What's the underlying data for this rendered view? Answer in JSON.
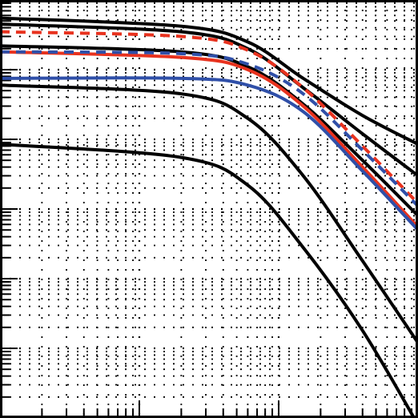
{
  "chart_data": {
    "type": "line",
    "title": "",
    "xlabel": "",
    "ylabel": "",
    "xscale": "log",
    "yscale": "log",
    "xlim": [
      1,
      1000
    ],
    "ylim": [
      1e-06,
      1
    ],
    "grid": true,
    "grid_style": "dotted",
    "legend": "none",
    "colors": {
      "black": "#000000",
      "red": "#e8321e",
      "blue": "#2f4fa8"
    },
    "series": [
      {
        "color": "black",
        "style": "solid",
        "x": [
          1,
          20,
          60,
          150,
          400,
          1000
        ],
        "y": [
          0.55,
          0.42,
          0.25,
          0.075,
          0.022,
          0.0085
        ]
      },
      {
        "color": "black",
        "style": "solid",
        "x": [
          1,
          20,
          60,
          150,
          400,
          1000
        ],
        "y": [
          0.45,
          0.35,
          0.2,
          0.055,
          0.012,
          0.003
        ]
      },
      {
        "color": "black",
        "style": "solid",
        "x": [
          1,
          20,
          60,
          150,
          400,
          1000
        ],
        "y": [
          0.22,
          0.18,
          0.11,
          0.032,
          0.005,
          0.0008
        ]
      },
      {
        "color": "black",
        "style": "solid",
        "x": [
          1,
          20,
          60,
          150,
          400,
          1000
        ],
        "y": [
          0.06,
          0.045,
          0.02,
          0.003,
          0.00018,
          1.2e-05
        ]
      },
      {
        "color": "black",
        "style": "solid",
        "x": [
          1,
          20,
          60,
          150,
          400,
          1000
        ],
        "y": [
          0.0085,
          0.0055,
          0.0022,
          0.00028,
          1.8e-05,
          8e-07
        ]
      },
      {
        "color": "red",
        "style": "dashed",
        "x": [
          1,
          20,
          60,
          150,
          400,
          1000
        ],
        "y": [
          0.35,
          0.3,
          0.19,
          0.055,
          0.008,
          0.0012
        ]
      },
      {
        "color": "red",
        "style": "solid",
        "x": [
          1,
          20,
          60,
          150,
          400,
          1000
        ],
        "y": [
          0.18,
          0.15,
          0.1,
          0.03,
          0.004,
          0.00055
        ]
      },
      {
        "color": "blue",
        "style": "dashed",
        "x": [
          1,
          20,
          60,
          150,
          400,
          1000
        ],
        "y": [
          0.18,
          0.17,
          0.12,
          0.045,
          0.007,
          0.0011
        ]
      },
      {
        "color": "blue",
        "style": "solid",
        "x": [
          1,
          20,
          60,
          150,
          400,
          1000
        ],
        "y": [
          0.075,
          0.075,
          0.06,
          0.025,
          0.0035,
          0.0005
        ]
      }
    ]
  }
}
